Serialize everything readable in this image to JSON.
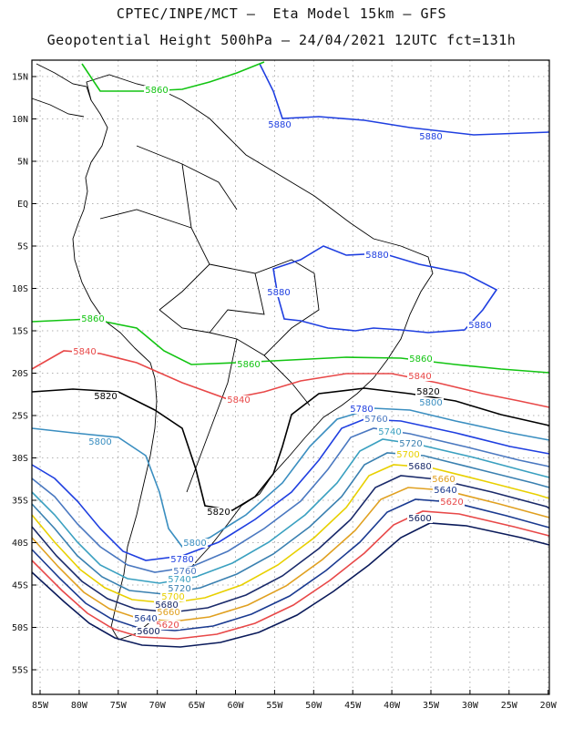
{
  "title_line1": "CPTEC/INPE/MCT –  Eta Model 15km – GFS",
  "title_line2": "Geopotential Height 500hPa – 24/04/2021 12UTC fct=131h",
  "lat_labels": [
    "15N",
    "10N",
    "5N",
    "EQ",
    "5S",
    "10S",
    "15S",
    "20S",
    "25S",
    "30S",
    "35S",
    "40S",
    "45S",
    "50S",
    "55S"
  ],
  "lon_labels": [
    "85W",
    "80W",
    "75W",
    "70W",
    "65W",
    "60W",
    "55W",
    "50W",
    "45W",
    "40W",
    "35W",
    "30W",
    "25W",
    "20W"
  ],
  "contours": [
    {
      "value": "5880",
      "color": "#1f3fe0"
    },
    {
      "value": "5860",
      "color": "#12c412"
    },
    {
      "value": "5840",
      "color": "#e84848"
    },
    {
      "value": "5820",
      "color": "#000000"
    },
    {
      "value": "5800",
      "color": "#3a8ec0"
    },
    {
      "value": "5780",
      "color": "#1f3fe0"
    },
    {
      "value": "5760",
      "color": "#4a78c0"
    },
    {
      "value": "5740",
      "color": "#3aa0c0"
    },
    {
      "value": "5720",
      "color": "#3a80b0"
    },
    {
      "value": "5700",
      "color": "#e8d000"
    },
    {
      "value": "5680",
      "color": "#1a2a6a"
    },
    {
      "value": "5660",
      "color": "#e0a020"
    },
    {
      "value": "5640",
      "color": "#1a3a90"
    },
    {
      "value": "5620",
      "color": "#e84848"
    },
    {
      "value": "5600",
      "color": "#0a1a5a"
    }
  ]
}
